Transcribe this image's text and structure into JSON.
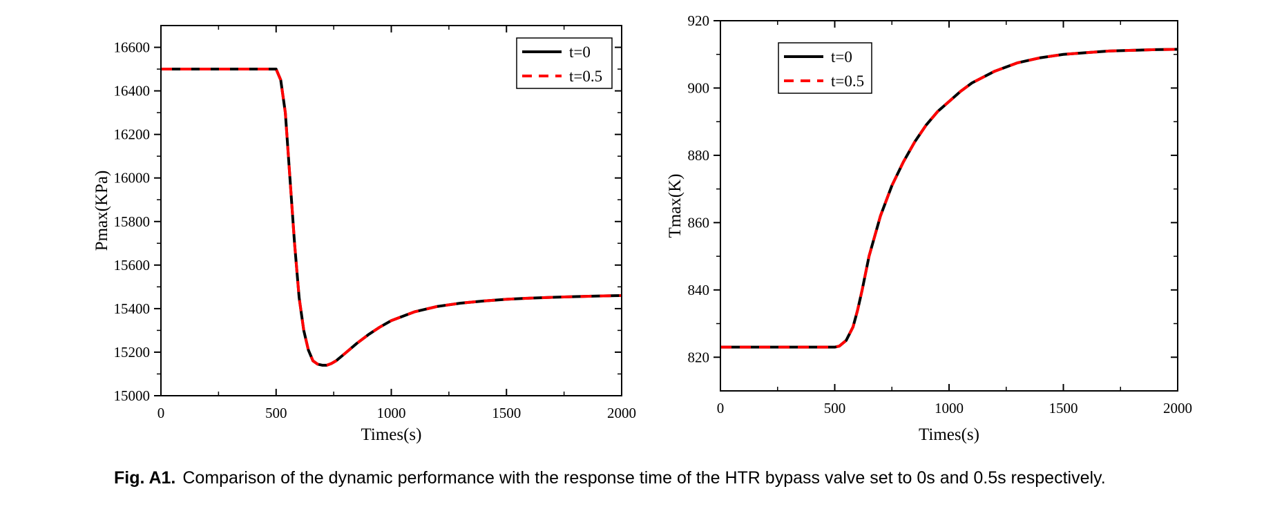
{
  "caption": {
    "label": "Fig. A1.",
    "text": "Comparison of the dynamic performance with the response time of the HTR bypass valve set to 0s and 0.5s respectively."
  },
  "chart_data": [
    {
      "type": "line",
      "xlabel": "Times(s)",
      "ylabel": "Pmax(KPa)",
      "xlim": [
        0,
        2000
      ],
      "ylim": [
        15000,
        16700
      ],
      "xticks": [
        0,
        500,
        1000,
        1500,
        2000
      ],
      "yticks": [
        15000,
        15200,
        15400,
        15600,
        15800,
        16000,
        16200,
        16400,
        16600
      ],
      "grid": false,
      "legend_position": "top-right",
      "series": [
        {
          "name": "t=0",
          "color": "#000000",
          "style": "solid",
          "x": [
            0,
            100,
            200,
            300,
            400,
            480,
            500,
            520,
            540,
            560,
            580,
            600,
            620,
            640,
            660,
            680,
            700,
            720,
            740,
            760,
            800,
            850,
            900,
            950,
            1000,
            1100,
            1200,
            1300,
            1400,
            1500,
            1600,
            1700,
            1800,
            1900,
            2000
          ],
          "y": [
            16500,
            16500,
            16500,
            16500,
            16500,
            16500,
            16500,
            16450,
            16300,
            16000,
            15700,
            15450,
            15300,
            15210,
            15160,
            15145,
            15140,
            15140,
            15148,
            15160,
            15195,
            15240,
            15280,
            15315,
            15345,
            15385,
            15410,
            15425,
            15435,
            15443,
            15448,
            15452,
            15455,
            15458,
            15460
          ]
        },
        {
          "name": "t=0.5",
          "color": "#ff0000",
          "style": "dashed",
          "x": [
            0,
            100,
            200,
            300,
            400,
            480,
            500,
            520,
            540,
            560,
            580,
            600,
            620,
            640,
            660,
            680,
            700,
            720,
            740,
            760,
            800,
            850,
            900,
            950,
            1000,
            1100,
            1200,
            1300,
            1400,
            1500,
            1600,
            1700,
            1800,
            1900,
            2000
          ],
          "y": [
            16500,
            16500,
            16500,
            16500,
            16500,
            16500,
            16500,
            16450,
            16300,
            16000,
            15700,
            15450,
            15300,
            15210,
            15160,
            15145,
            15140,
            15140,
            15148,
            15160,
            15195,
            15240,
            15280,
            15315,
            15345,
            15385,
            15410,
            15425,
            15435,
            15443,
            15448,
            15452,
            15455,
            15458,
            15460
          ]
        }
      ]
    },
    {
      "type": "line",
      "xlabel": "Times(s)",
      "ylabel": "Tmax(K)",
      "xlim": [
        0,
        2000
      ],
      "ylim": [
        810,
        920
      ],
      "xticks": [
        0,
        500,
        1000,
        1500,
        2000
      ],
      "yticks": [
        820,
        840,
        860,
        880,
        900,
        920
      ],
      "grid": false,
      "legend_position": "top-left",
      "series": [
        {
          "name": "t=0",
          "color": "#000000",
          "style": "solid",
          "x": [
            0,
            100,
            200,
            300,
            400,
            500,
            520,
            550,
            580,
            600,
            620,
            650,
            700,
            750,
            800,
            850,
            900,
            950,
            1000,
            1050,
            1100,
            1200,
            1300,
            1400,
            1500,
            1600,
            1700,
            1800,
            1900,
            2000
          ],
          "y": [
            823,
            823,
            823,
            823,
            823,
            823,
            823.3,
            825,
            829,
            834,
            840,
            850,
            862,
            871,
            878,
            884,
            889,
            893,
            896,
            899,
            901.5,
            905,
            907.5,
            909,
            910,
            910.5,
            911,
            911.2,
            911.4,
            911.5
          ]
        },
        {
          "name": "t=0.5",
          "color": "#ff0000",
          "style": "dashed",
          "x": [
            0,
            100,
            200,
            300,
            400,
            500,
            520,
            550,
            580,
            600,
            620,
            650,
            700,
            750,
            800,
            850,
            900,
            950,
            1000,
            1050,
            1100,
            1200,
            1300,
            1400,
            1500,
            1600,
            1700,
            1800,
            1900,
            2000
          ],
          "y": [
            823,
            823,
            823,
            823,
            823,
            823,
            823.3,
            825,
            829,
            834,
            840,
            850,
            862,
            871,
            878,
            884,
            889,
            893,
            896,
            899,
            901.5,
            905,
            907.5,
            909,
            910,
            910.5,
            911,
            911.2,
            911.4,
            911.5
          ]
        }
      ]
    }
  ]
}
